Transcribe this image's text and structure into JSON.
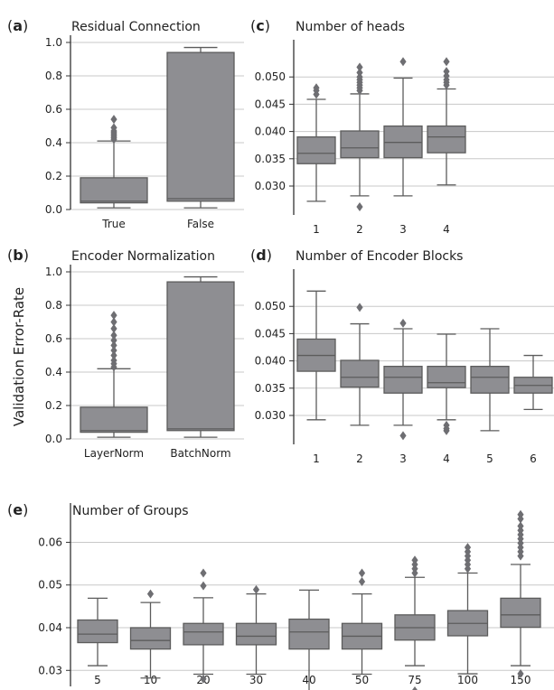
{
  "ylabel": "Validation Error-Rate",
  "chart_data": [
    {
      "type": "box",
      "id": "a",
      "panel_letter": "(a)",
      "title": "Residual Connection",
      "ylim": [
        0.0,
        1.0
      ],
      "yticks": [
        0.0,
        0.2,
        0.4,
        0.6,
        0.8,
        1.0
      ],
      "ytick_labels": [
        "0.0",
        "0.2",
        "0.4",
        "0.6",
        "0.8",
        "1.0"
      ],
      "grid": true,
      "categories": [
        "True",
        "False"
      ],
      "boxes": [
        {
          "q1": 0.04,
          "median": 0.05,
          "q3": 0.19,
          "whislo": 0.01,
          "whishi": 0.41,
          "fliers": [
            0.42,
            0.43,
            0.44,
            0.45,
            0.46,
            0.47,
            0.49,
            0.54
          ]
        },
        {
          "q1": 0.05,
          "median": 0.065,
          "q3": 0.94,
          "whislo": 0.01,
          "whishi": 0.97,
          "fliers": []
        }
      ]
    },
    {
      "type": "box",
      "id": "b",
      "panel_letter": "(b)",
      "title": "Encoder Normalization",
      "ylim": [
        0.0,
        1.0
      ],
      "yticks": [
        0.0,
        0.2,
        0.4,
        0.6,
        0.8,
        1.0
      ],
      "ytick_labels": [
        "0.0",
        "0.2",
        "0.4",
        "0.6",
        "0.8",
        "1.0"
      ],
      "grid": true,
      "categories": [
        "LayerNorm",
        "BatchNorm"
      ],
      "boxes": [
        {
          "q1": 0.04,
          "median": 0.05,
          "q3": 0.19,
          "whislo": 0.01,
          "whishi": 0.42,
          "fliers": [
            0.43,
            0.45,
            0.47,
            0.5,
            0.53,
            0.56,
            0.59,
            0.62,
            0.66,
            0.7,
            0.74
          ]
        },
        {
          "q1": 0.05,
          "median": 0.06,
          "q3": 0.94,
          "whislo": 0.01,
          "whishi": 0.97,
          "fliers": []
        }
      ]
    },
    {
      "type": "box",
      "id": "c",
      "panel_letter": "(c)",
      "title": "Number of heads",
      "ylim": [
        0.0247,
        0.0555
      ],
      "yticks": [
        0.03,
        0.035,
        0.04,
        0.045,
        0.05
      ],
      "ytick_labels": [
        "0.030",
        "0.035",
        "0.040",
        "0.045",
        "0.050"
      ],
      "grid": true,
      "categories": [
        "1",
        "2",
        "3",
        "4"
      ],
      "boxes": [
        {
          "q1": 0.0341,
          "median": 0.036,
          "q3": 0.039,
          "whislo": 0.0272,
          "whishi": 0.0459,
          "fliers": [
            0.0468,
            0.0475,
            0.048
          ]
        },
        {
          "q1": 0.0352,
          "median": 0.037,
          "q3": 0.0401,
          "whislo": 0.0282,
          "whishi": 0.0469,
          "fliers": [
            0.0475,
            0.048,
            0.0485,
            0.049,
            0.0495,
            0.05,
            0.0508,
            0.0518,
            0.0262
          ]
        },
        {
          "q1": 0.0352,
          "median": 0.038,
          "q3": 0.041,
          "whislo": 0.0282,
          "whishi": 0.0498,
          "fliers": [
            0.0528
          ]
        },
        {
          "q1": 0.0361,
          "median": 0.039,
          "q3": 0.041,
          "whislo": 0.0302,
          "whishi": 0.0478,
          "fliers": [
            0.0485,
            0.049,
            0.0495,
            0.0502,
            0.051,
            0.0528
          ]
        }
      ]
    },
    {
      "type": "box",
      "id": "d",
      "panel_letter": "(d)",
      "title": "Number of Encoder Blocks",
      "ylim": [
        0.0247,
        0.0555
      ],
      "yticks": [
        0.03,
        0.035,
        0.04,
        0.045,
        0.05
      ],
      "ytick_labels": [
        "0.030",
        "0.035",
        "0.040",
        "0.045",
        "0.050"
      ],
      "grid": true,
      "categories": [
        "1",
        "2",
        "3",
        "4",
        "5",
        "6"
      ],
      "boxes": [
        {
          "q1": 0.0381,
          "median": 0.041,
          "q3": 0.044,
          "whislo": 0.0292,
          "whishi": 0.0528,
          "fliers": []
        },
        {
          "q1": 0.0352,
          "median": 0.037,
          "q3": 0.0401,
          "whislo": 0.0282,
          "whishi": 0.0468,
          "fliers": [
            0.0498
          ]
        },
        {
          "q1": 0.0341,
          "median": 0.037,
          "q3": 0.039,
          "whislo": 0.0282,
          "whishi": 0.0459,
          "fliers": [
            0.0469,
            0.0263
          ]
        },
        {
          "q1": 0.0351,
          "median": 0.036,
          "q3": 0.039,
          "whislo": 0.0292,
          "whishi": 0.0449,
          "fliers": [
            0.0282,
            0.0276,
            0.0272
          ]
        },
        {
          "q1": 0.0341,
          "median": 0.037,
          "q3": 0.039,
          "whislo": 0.0272,
          "whishi": 0.0459,
          "fliers": []
        },
        {
          "q1": 0.0341,
          "median": 0.0355,
          "q3": 0.037,
          "whislo": 0.0311,
          "whishi": 0.041,
          "fliers": []
        }
      ]
    },
    {
      "type": "box",
      "id": "e",
      "panel_letter": "(e)",
      "title": "Number of Groups",
      "ylim": [
        0.0235,
        0.0675
      ],
      "yticks": [
        0.03,
        0.04,
        0.05,
        0.06
      ],
      "ytick_labels": [
        "0.03",
        "0.04",
        "0.05",
        "0.06"
      ],
      "grid": true,
      "categories": [
        "5",
        "10",
        "20",
        "30",
        "40",
        "50",
        "75",
        "100",
        "150"
      ],
      "boxes": [
        {
          "q1": 0.0365,
          "median": 0.0385,
          "q3": 0.0418,
          "whislo": 0.0311,
          "whishi": 0.0469,
          "fliers": []
        },
        {
          "q1": 0.035,
          "median": 0.037,
          "q3": 0.04,
          "whislo": 0.0282,
          "whishi": 0.0459,
          "fliers": [
            0.0479
          ]
        },
        {
          "q1": 0.036,
          "median": 0.039,
          "q3": 0.041,
          "whislo": 0.0291,
          "whishi": 0.047,
          "fliers": [
            0.0498,
            0.0528,
            0.028
          ]
        },
        {
          "q1": 0.036,
          "median": 0.038,
          "q3": 0.041,
          "whislo": 0.0291,
          "whishi": 0.0479,
          "fliers": [
            0.0489
          ]
        },
        {
          "q1": 0.035,
          "median": 0.039,
          "q3": 0.042,
          "whislo": 0.0252,
          "whishi": 0.0488,
          "fliers": []
        },
        {
          "q1": 0.035,
          "median": 0.038,
          "q3": 0.041,
          "whislo": 0.0291,
          "whishi": 0.0479,
          "fliers": [
            0.0508,
            0.0528
          ]
        },
        {
          "q1": 0.0371,
          "median": 0.04,
          "q3": 0.043,
          "whislo": 0.0311,
          "whishi": 0.0518,
          "fliers": [
            0.0528,
            0.0538,
            0.0548,
            0.0558,
            0.0252
          ]
        },
        {
          "q1": 0.0381,
          "median": 0.041,
          "q3": 0.044,
          "whislo": 0.0292,
          "whishi": 0.0528,
          "fliers": [
            0.0538,
            0.0548,
            0.0558,
            0.0568,
            0.0578,
            0.0588
          ]
        },
        {
          "q1": 0.0401,
          "median": 0.043,
          "q3": 0.0469,
          "whislo": 0.0311,
          "whishi": 0.0548,
          "fliers": [
            0.0568,
            0.0578,
            0.0588,
            0.0598,
            0.0608,
            0.0618,
            0.0628,
            0.0638,
            0.0655,
            0.0665,
            0.0292
          ]
        }
      ]
    }
  ]
}
